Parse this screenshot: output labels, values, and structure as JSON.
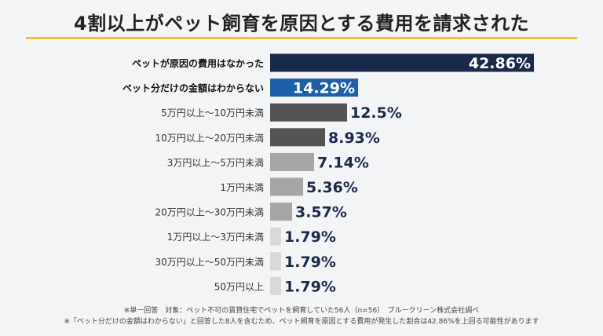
{
  "title": "4割以上がペット飼育を原因とする費用を請求された",
  "footnotes": [
    "※単一回答　対象：ペット不可の賃貸住宅でペットを飼育していた56人（n=56）　ブルークリーン株式会社調べ",
    "※「ペット分だけの金額はわからない」と回答した8人を含むため、ペット飼育を原因とする費用が発生した割合は42.86%を上回る可能性があります"
  ],
  "colors": {
    "navy": "#1b2a4a",
    "blue": "#1f5fa8",
    "dark_gray": "#545454",
    "mid_gray": "#a6a6a6",
    "light_gray": "#d9d9d9",
    "label_dark": "#1b2a4a",
    "accent_rule": "#f2c230"
  },
  "chart_data": {
    "type": "bar",
    "orientation": "horizontal",
    "categories": [
      "ペットが原因の費用はなかった",
      "ペット分だけの金額はわからない",
      "5万円以上～10万円未満",
      "10万円以上～20万円未満",
      "3万円以上～5万円未満",
      "1万円未満",
      "20万円以上～30万円未満",
      "1万円以上～3万円未満",
      "30万円以上～50万円未満",
      "50万円以上"
    ],
    "values": [
      42.86,
      14.29,
      12.5,
      8.93,
      7.14,
      5.36,
      3.57,
      1.79,
      1.79,
      1.79
    ],
    "value_labels": [
      "42.86%",
      "14.29%",
      "12.5%",
      "8.93%",
      "7.14%",
      "5.36%",
      "3.57%",
      "1.79%",
      "1.79%",
      "1.79%"
    ],
    "bar_colors": [
      "#1b2a4a",
      "#1f5fa8",
      "#545454",
      "#545454",
      "#a6a6a6",
      "#a6a6a6",
      "#a6a6a6",
      "#d9d9d9",
      "#d9d9d9",
      "#d9d9d9"
    ],
    "label_inside": [
      true,
      true,
      false,
      false,
      false,
      false,
      false,
      false,
      false,
      false
    ],
    "bold_category": [
      true,
      true,
      false,
      false,
      false,
      false,
      false,
      false,
      false,
      false
    ],
    "unit": "%",
    "grid": false,
    "legend": "none"
  }
}
